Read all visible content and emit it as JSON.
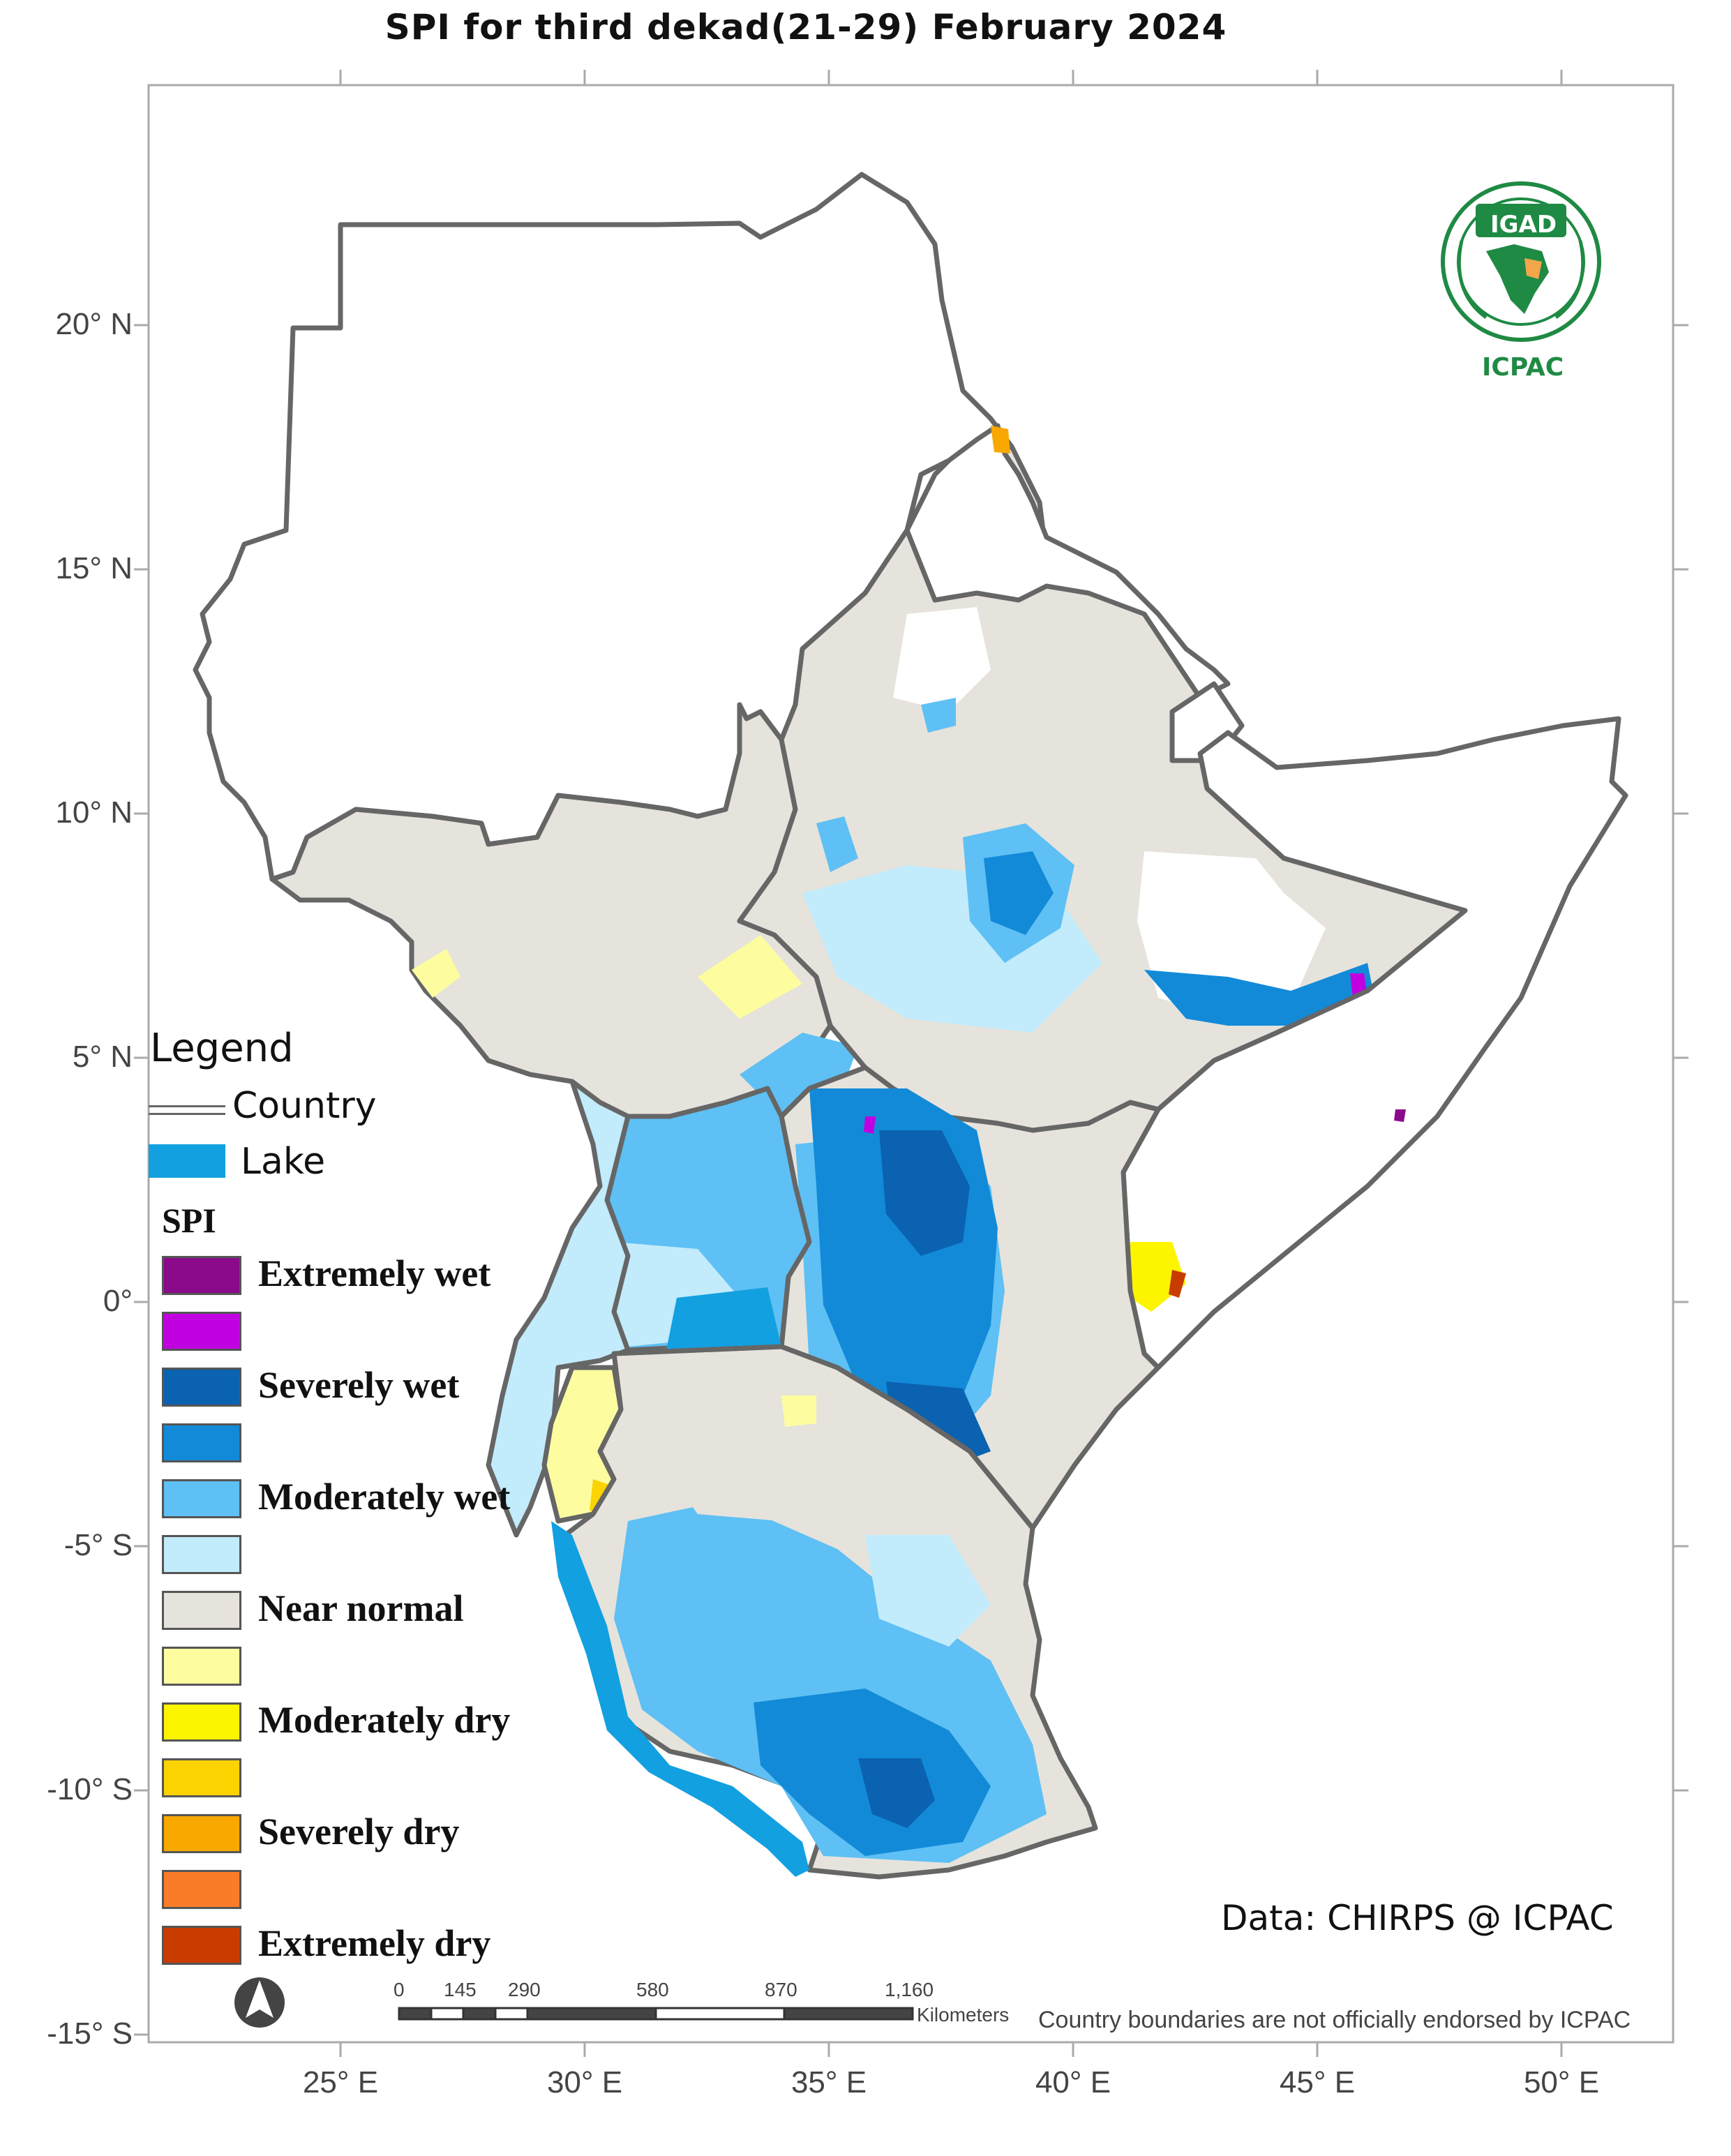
{
  "title": "SPI   for  third dekad(21-29) February 2024",
  "latitude_labels": [
    "20° N",
    "15° N",
    "10° N",
    "5° N",
    "0°",
    "-5° S",
    "-10° S",
    "-15° S"
  ],
  "longitude_labels": [
    "25° E",
    "30° E",
    "35° E",
    "40° E",
    "45° E",
    "50° E"
  ],
  "legend": {
    "title": "Legend",
    "country_label": "Country",
    "lake_label": "Lake",
    "spi_title": "SPI",
    "classes": [
      {
        "label": "Extremely wet",
        "color": "#8b0a8b"
      },
      {
        "label": "",
        "color": "#c000e0"
      },
      {
        "label": "Severely wet",
        "color": "#0a62b0"
      },
      {
        "label": "",
        "color": "#128ad8"
      },
      {
        "label": "Moderately wet",
        "color": "#5ec0f4"
      },
      {
        "label": "",
        "color": "#c2ebfb"
      },
      {
        "label": "Near normal",
        "color": "#e6e3dc"
      },
      {
        "label": "",
        "color": "#fdfda0"
      },
      {
        "label": "Moderately dry",
        "color": "#fdf400"
      },
      {
        "label": "",
        "color": "#fbd300"
      },
      {
        "label": "Severely dry",
        "color": "#f9a800"
      },
      {
        "label": "",
        "color": "#fb7c28"
      },
      {
        "label": "Extremely dry",
        "color": "#c93c00"
      }
    ],
    "lake_color": "#12a0e0",
    "country_color": "#666666"
  },
  "logo": {
    "top_text": "IGAD",
    "bottom_text": "ICPAC"
  },
  "credit": "Data: CHIRPS @ ICPAC",
  "scale_bar": {
    "ticks": [
      "0",
      "145",
      "290",
      "580",
      "870",
      "1,160"
    ],
    "units": "Kilometers"
  },
  "disclaimer": "Country boundaries are not officially endorsed by ICPAC",
  "north_arrow_icon": "north-arrow-icon"
}
